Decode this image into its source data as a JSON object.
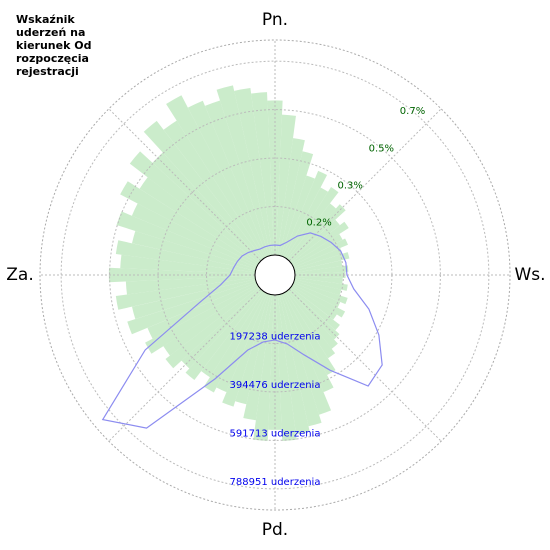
{
  "chart_data": {
    "type": "polar",
    "title": "Wskaźnik uderzeń na kierunek Od rozpoczęcia rejestracji",
    "directions": [
      "Pn.",
      "Ws.",
      "Pd.",
      "Za."
    ],
    "series": [
      {
        "axis": "pct",
        "color": "#b9e6b9",
        "values": [
          0.55,
          0.5,
          0.42,
          0.38,
          0.3,
          0.33,
          0.28,
          0.3,
          0.25,
          0.27,
          0.22,
          0.24,
          0.2,
          0.21,
          0.18,
          0.2,
          0.17,
          0.19,
          0.18,
          0.17,
          0.19,
          0.17,
          0.2,
          0.18,
          0.21,
          0.19,
          0.22,
          0.24,
          0.26,
          0.28,
          0.33,
          0.38,
          0.45,
          0.48,
          0.5,
          0.52,
          0.48,
          0.52,
          0.45,
          0.4,
          0.42,
          0.38,
          0.4,
          0.36,
          0.4,
          0.38,
          0.42,
          0.4,
          0.45,
          0.42,
          0.48,
          0.45,
          0.5,
          0.46,
          0.52,
          0.48,
          0.5,
          0.45,
          0.52,
          0.48,
          0.55,
          0.5,
          0.58,
          0.52,
          0.62,
          0.58,
          0.65,
          0.6,
          0.58,
          0.62,
          0.6,
          0.58
        ]
      },
      {
        "axis": "count",
        "color": "#8c8cf0",
        "values": [
          40700,
          40700,
          61000,
          101700,
          142300,
          162700,
          183000,
          203300,
          211500,
          211500,
          244000,
          325300,
          406700,
          488000,
          508300,
          366000,
          264300,
          203300,
          183000,
          195200,
          244000,
          406700,
          732000,
          833700,
          528700,
          244000,
          142300,
          101700,
          89500,
          81300,
          73200,
          61000,
          48800,
          40700,
          40700,
          40700
        ]
      }
    ],
    "pct_lim": [
      0,
      0.765
    ],
    "pct_ticks": [
      {
        "value": 0.1725,
        "label": "0.2%"
      },
      {
        "value": 0.345,
        "label": "0.3%"
      },
      {
        "value": 0.5175,
        "label": "0.5%"
      },
      {
        "value": 0.69,
        "label": "0.7%"
      }
    ],
    "count_lim": [
      0,
      875000
    ],
    "count_ticks": [
      {
        "value": 197238,
        "label": "197238 uderzenia"
      },
      {
        "value": 394476,
        "label": "394476 uderzenia"
      },
      {
        "value": 591713,
        "label": "591713 uderzenia"
      },
      {
        "value": 788951,
        "label": "788951 uderzenia"
      }
    ],
    "pct_tick_color": "#006400",
    "count_tick_color": "#0000ee",
    "grid": true
  }
}
